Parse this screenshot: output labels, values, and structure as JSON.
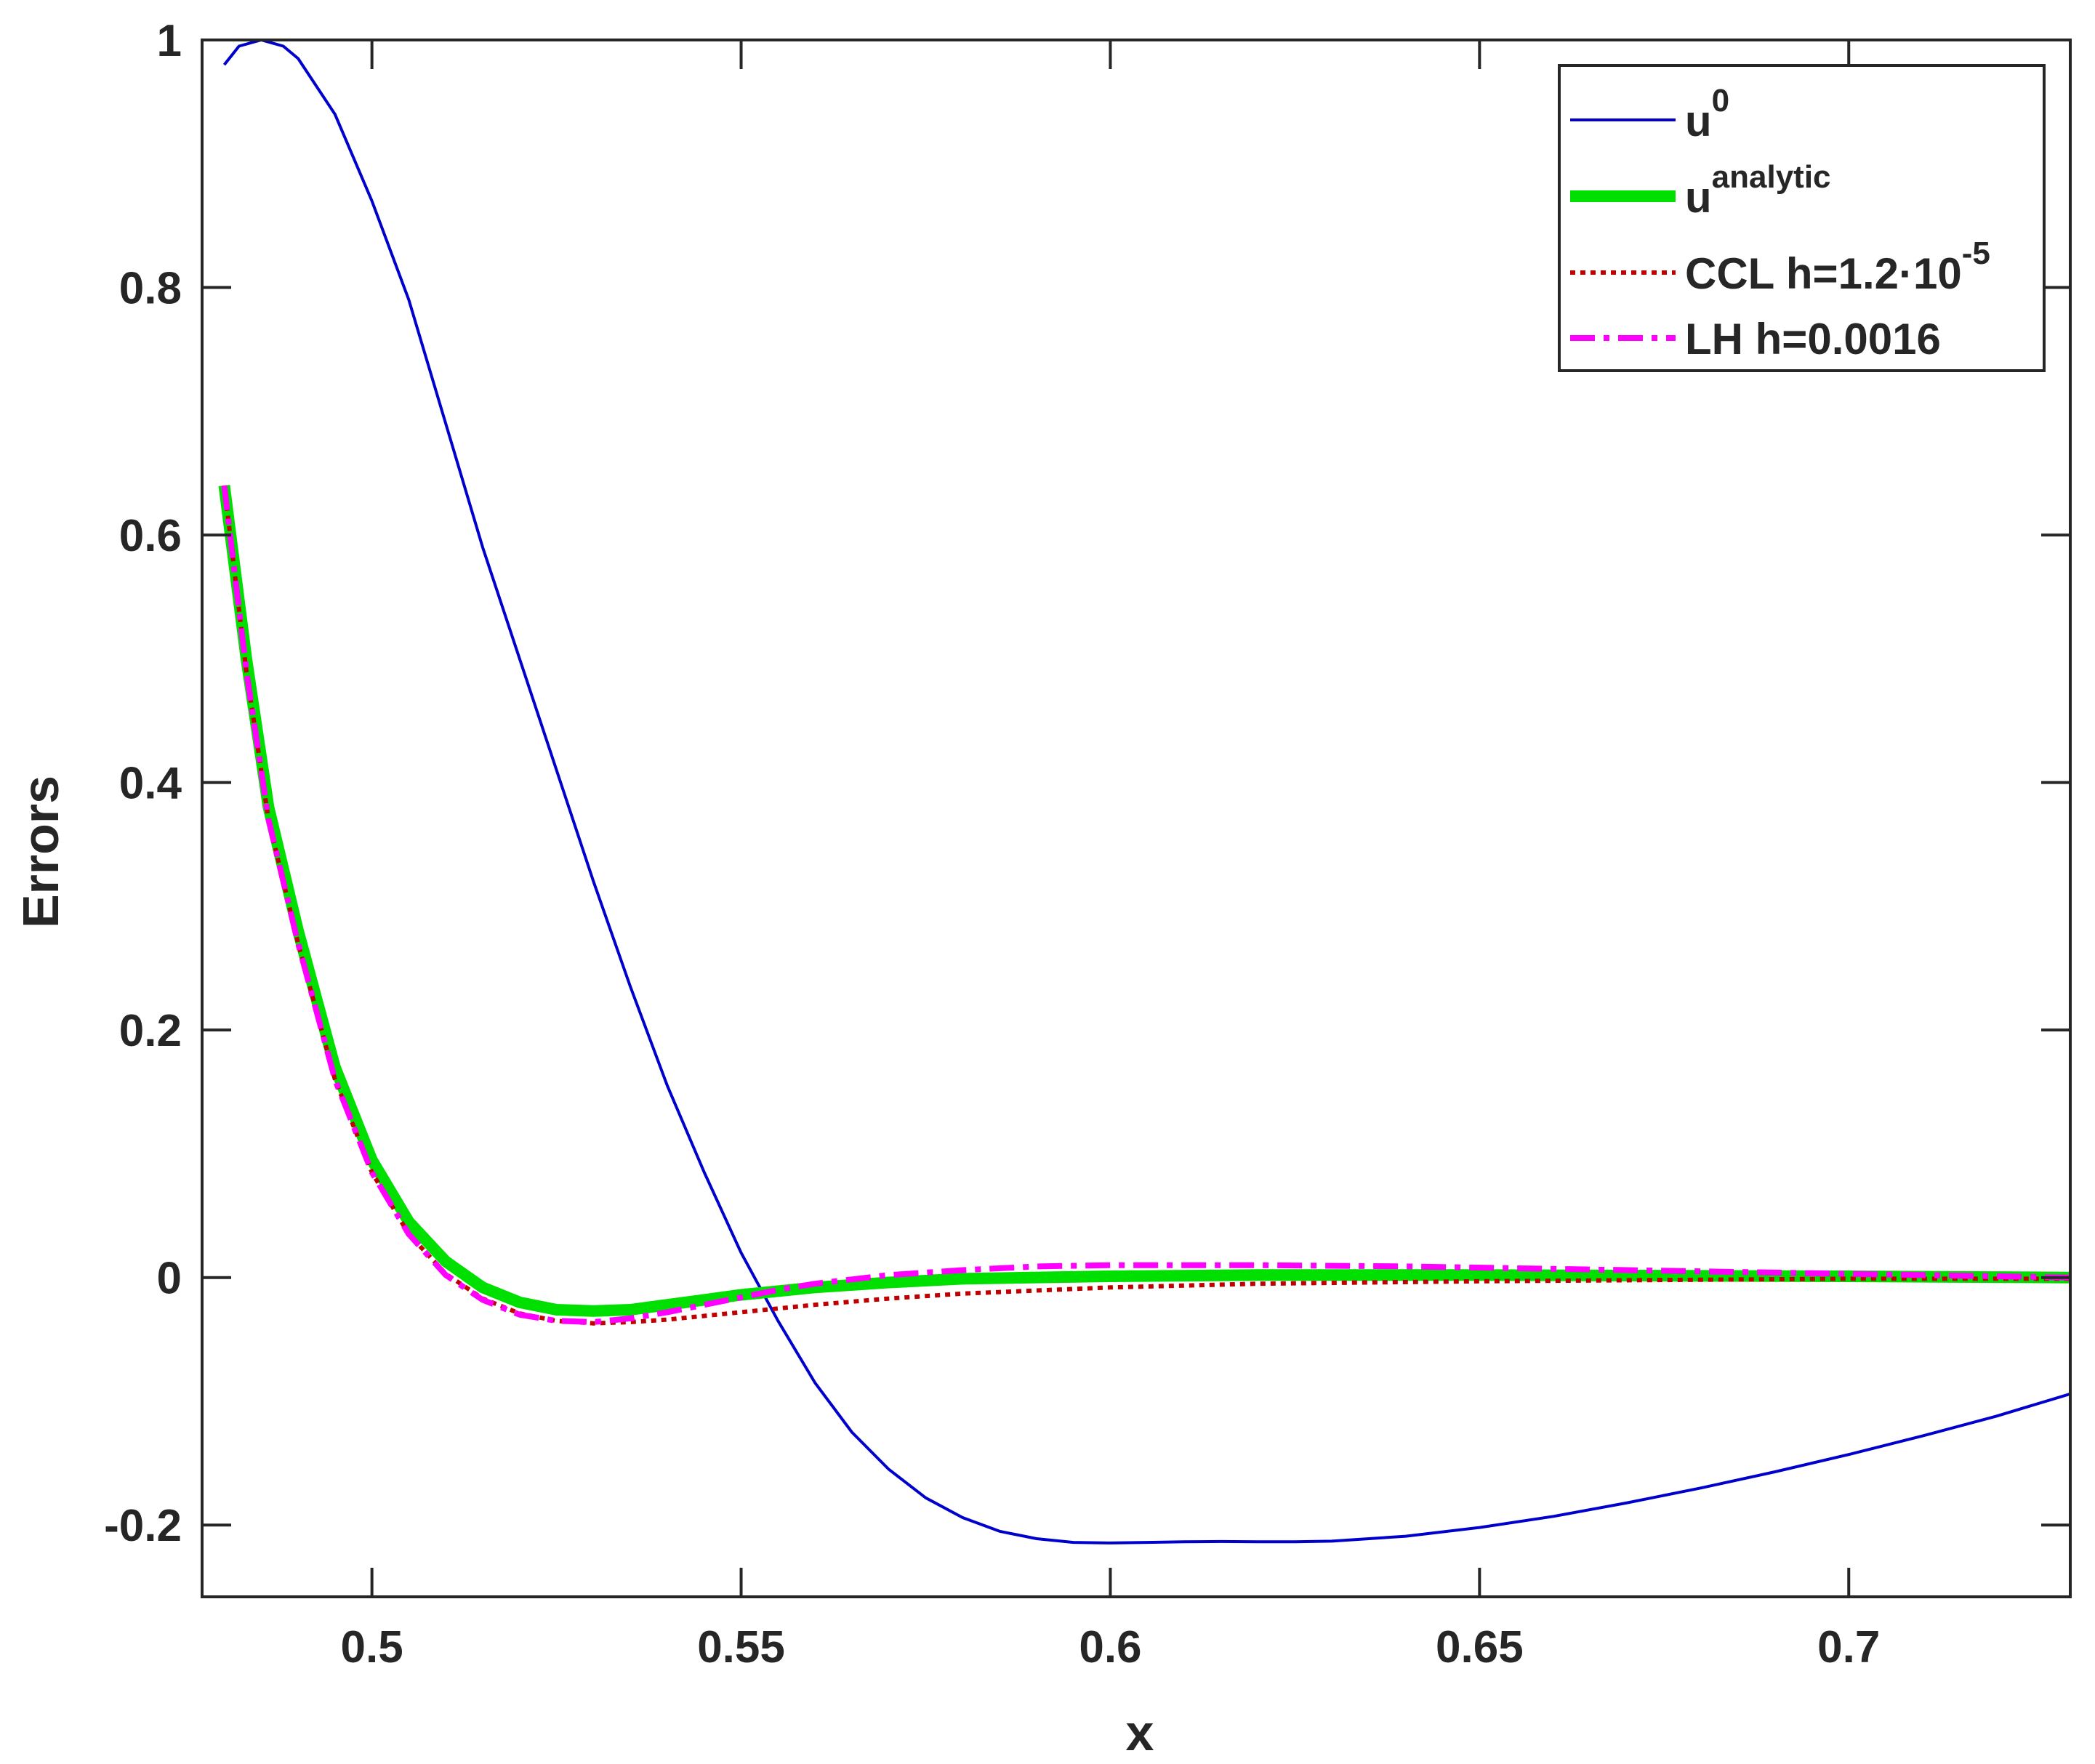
{
  "chart_data": {
    "type": "line",
    "title": "",
    "xlabel": "x",
    "ylabel": "Errors",
    "xlim": [
      0.477,
      0.73
    ],
    "ylim": [
      -0.258,
      1.0
    ],
    "xticks": [
      0.5,
      0.55,
      0.6,
      0.65,
      0.7
    ],
    "xtick_labels": [
      "0.5",
      "0.55",
      "0.6",
      "0.65",
      "0.7"
    ],
    "yticks": [
      -0.2,
      0,
      0.2,
      0.4,
      0.6,
      0.8,
      1
    ],
    "ytick_labels": [
      "-0.2",
      "0",
      "0.2",
      "0.4",
      "0.6",
      "0.8",
      "1"
    ],
    "grid": false,
    "legend_position": "top-right",
    "series": [
      {
        "key": "u0",
        "name": "u",
        "name_sup": "0",
        "color": "#0000cd",
        "style": "solid",
        "x": [
          0.48,
          0.482,
          0.485,
          0.488,
          0.49,
          0.495,
          0.5,
          0.505,
          0.51,
          0.515,
          0.52,
          0.525,
          0.53,
          0.535,
          0.54,
          0.545,
          0.55,
          0.555,
          0.56,
          0.565,
          0.57,
          0.575,
          0.58,
          0.585,
          0.59,
          0.595,
          0.6,
          0.605,
          0.61,
          0.615,
          0.62,
          0.625,
          0.63,
          0.64,
          0.65,
          0.66,
          0.67,
          0.68,
          0.69,
          0.7,
          0.71,
          0.72,
          0.73
        ],
        "y": [
          0.98,
          0.995,
          1.0,
          0.995,
          0.985,
          0.94,
          0.87,
          0.79,
          0.69,
          0.59,
          0.5,
          0.41,
          0.32,
          0.235,
          0.155,
          0.085,
          0.02,
          -0.035,
          -0.085,
          -0.125,
          -0.155,
          -0.178,
          -0.194,
          -0.205,
          -0.211,
          -0.214,
          -0.2145,
          -0.214,
          -0.2135,
          -0.2133,
          -0.2135,
          -0.2135,
          -0.213,
          -0.209,
          -0.202,
          -0.193,
          -0.182,
          -0.17,
          -0.157,
          -0.143,
          -0.128,
          -0.112,
          -0.094
        ]
      },
      {
        "key": "analytic",
        "name": "u",
        "name_sup": "analytic",
        "color": "#00e000",
        "style": "thick",
        "x": [
          0.48,
          0.483,
          0.486,
          0.49,
          0.495,
          0.5,
          0.505,
          0.51,
          0.515,
          0.52,
          0.525,
          0.53,
          0.535,
          0.54,
          0.545,
          0.55,
          0.555,
          0.56,
          0.57,
          0.58,
          0.6,
          0.62,
          0.65,
          0.7,
          0.73
        ],
        "y": [
          0.64,
          0.5,
          0.38,
          0.28,
          0.17,
          0.095,
          0.045,
          0.013,
          -0.008,
          -0.02,
          -0.026,
          -0.027,
          -0.026,
          -0.022,
          -0.018,
          -0.014,
          -0.011,
          -0.008,
          -0.004,
          -0.001,
          0.001,
          0.002,
          0.002,
          0.001,
          0.0
        ]
      },
      {
        "key": "ccl",
        "name": "CCL h=1.2·10",
        "name_sup": "-5",
        "color": "#c00000",
        "style": "dotted",
        "x": [
          0.48,
          0.483,
          0.486,
          0.49,
          0.495,
          0.5,
          0.505,
          0.51,
          0.515,
          0.52,
          0.525,
          0.53,
          0.535,
          0.54,
          0.545,
          0.55,
          0.555,
          0.56,
          0.57,
          0.58,
          0.6,
          0.62,
          0.65,
          0.7,
          0.73
        ],
        "y": [
          0.64,
          0.49,
          0.37,
          0.27,
          0.16,
          0.085,
          0.035,
          0.003,
          -0.017,
          -0.029,
          -0.035,
          -0.037,
          -0.036,
          -0.034,
          -0.031,
          -0.028,
          -0.025,
          -0.022,
          -0.017,
          -0.013,
          -0.008,
          -0.005,
          -0.003,
          -0.001,
          -0.001
        ]
      },
      {
        "key": "lh",
        "name": "LH h=0.0016",
        "name_sup": "",
        "color": "#ff00ff",
        "style": "dashdot",
        "x": [
          0.48,
          0.483,
          0.486,
          0.49,
          0.495,
          0.5,
          0.505,
          0.51,
          0.515,
          0.52,
          0.525,
          0.53,
          0.535,
          0.54,
          0.545,
          0.55,
          0.555,
          0.56,
          0.57,
          0.58,
          0.59,
          0.6,
          0.61,
          0.62,
          0.64,
          0.66,
          0.68,
          0.7,
          0.73
        ],
        "y": [
          0.64,
          0.49,
          0.37,
          0.27,
          0.16,
          0.085,
          0.035,
          0.002,
          -0.018,
          -0.03,
          -0.035,
          -0.036,
          -0.033,
          -0.028,
          -0.022,
          -0.016,
          -0.01,
          -0.005,
          0.002,
          0.006,
          0.009,
          0.01,
          0.01,
          0.01,
          0.009,
          0.007,
          0.005,
          0.003,
          0.0
        ]
      }
    ]
  }
}
